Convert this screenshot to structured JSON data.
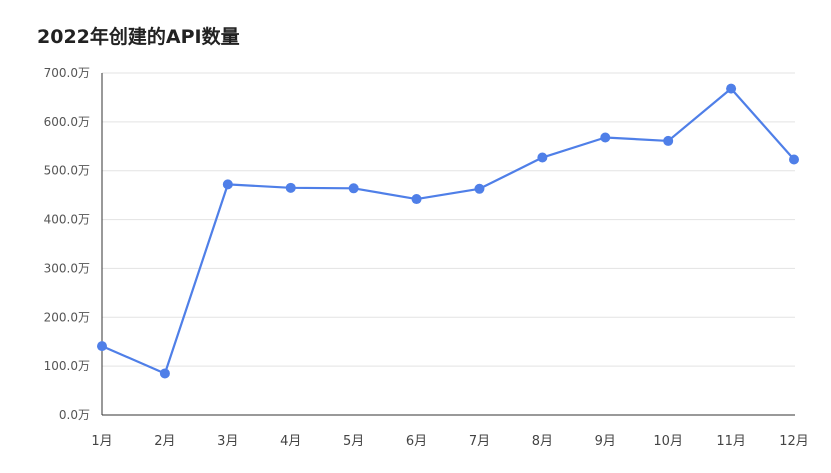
{
  "chart_data": {
    "type": "line",
    "title": "2022年创建的API数量",
    "xlabel": "",
    "ylabel": "",
    "categories": [
      "1月",
      "2月",
      "3月",
      "4月",
      "5月",
      "6月",
      "7月",
      "8月",
      "9月",
      "10月",
      "11月",
      "12月"
    ],
    "values": [
      141,
      85,
      472,
      465,
      464,
      442,
      463,
      527,
      568,
      561,
      668,
      523
    ],
    "ylim": [
      0,
      700
    ],
    "y_ticks": [
      0,
      100,
      200,
      300,
      400,
      500,
      600,
      700
    ],
    "y_tick_labels": [
      "0.0万",
      "100.0万",
      "200.0万",
      "300.0万",
      "400.0万",
      "500.0万",
      "600.0万",
      "700.0万"
    ],
    "grid": true,
    "legend": "none",
    "series_color": "#4F7FE8",
    "grid_color": "#E3E3E3",
    "axis_color": "#333333"
  }
}
